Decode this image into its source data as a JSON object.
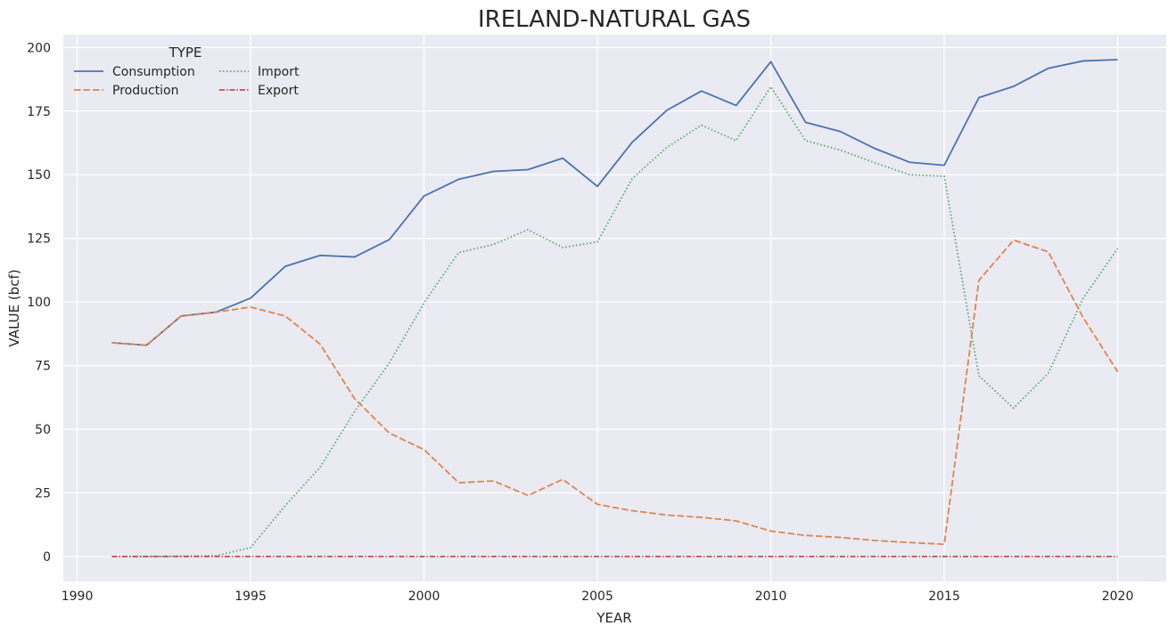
{
  "chart_data": {
    "type": "line",
    "title": "IRELAND-NATURAL GAS",
    "xlabel": "YEAR",
    "ylabel": "VALUE (bcf)",
    "xlim": [
      1989.6,
      2021.4
    ],
    "ylim": [
      -9.8,
      205
    ],
    "xticks": [
      1990,
      1995,
      2000,
      2005,
      2010,
      2015,
      2020
    ],
    "yticks": [
      0,
      25,
      50,
      75,
      100,
      125,
      150,
      175,
      200
    ],
    "grid": true,
    "legend": {
      "title": "TYPE",
      "placement": "top-left"
    },
    "x": [
      1991,
      1992,
      1993,
      1994,
      1995,
      1996,
      1997,
      1998,
      1999,
      2000,
      2001,
      2002,
      2003,
      2004,
      2005,
      2006,
      2007,
      2008,
      2009,
      2010,
      2011,
      2012,
      2013,
      2014,
      2015,
      2016,
      2017,
      2018,
      2019,
      2020
    ],
    "series": [
      {
        "name": "Consumption",
        "color": "#4c72b0",
        "dash": "",
        "values": [
          84,
          83,
          94.5,
          96,
          101.5,
          114,
          118.3,
          117.7,
          124.5,
          141.6,
          148.2,
          151.3,
          152,
          156.5,
          145.4,
          162.7,
          175.3,
          182.9,
          177.2,
          194.4,
          170.6,
          167,
          160.3,
          154.9,
          153.7,
          180.3,
          184.7,
          191.8,
          194.7,
          195.2
        ]
      },
      {
        "name": "Production",
        "color": "#dd8452",
        "dash": "7.5,3",
        "values": [
          84,
          83,
          94.5,
          96,
          98,
          94.5,
          83.5,
          62,
          48.5,
          42,
          29,
          29.7,
          24,
          30.3,
          20.5,
          18,
          16.3,
          15.4,
          14,
          10,
          8.3,
          7.5,
          6.3,
          5.5,
          4.8,
          108.5,
          124.3,
          119.7,
          94,
          72.6
        ]
      },
      {
        "name": "Import",
        "color": "#55a868",
        "dash": "1.5,2.5",
        "values": [
          0,
          0,
          0.2,
          0.3,
          3.5,
          20,
          35,
          57,
          76,
          99.6,
          119.4,
          122.6,
          128.4,
          121.4,
          123.6,
          148.4,
          160.7,
          169.5,
          163.4,
          184.6,
          163.4,
          159.7,
          154.7,
          150,
          149.4,
          71,
          58.3,
          72,
          101.3,
          121
        ]
      },
      {
        "name": "Export",
        "color": "#c44e52",
        "dash": "6,2,1.5,2",
        "values": [
          0,
          0,
          0,
          0,
          0,
          0,
          0,
          0,
          0,
          0,
          0,
          0,
          0,
          0,
          0,
          0,
          0,
          0,
          0,
          0,
          0,
          0,
          0,
          0,
          0,
          0,
          0,
          0,
          0,
          0
        ]
      }
    ]
  }
}
